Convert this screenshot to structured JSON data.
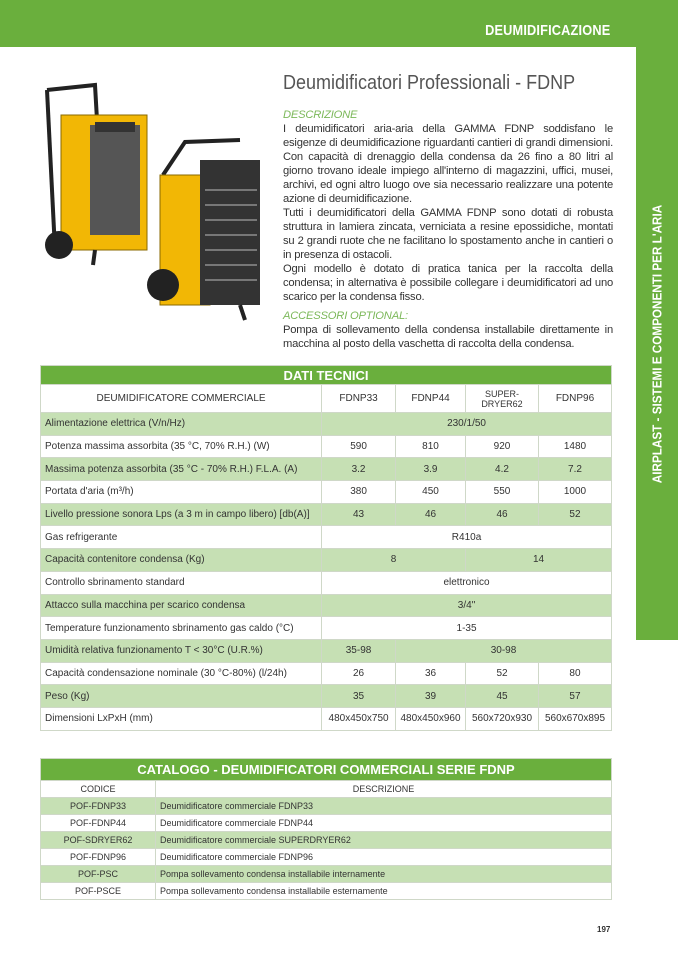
{
  "header": {
    "section": "DEUMIDIFICAZIONE",
    "side_label": "AIRPLAST - SISTEMI E COMPONENTI PER L'ARIA"
  },
  "product": {
    "title": "Deumidificatori Professionali - FDNP",
    "description_heading": "DESCRIZIONE",
    "description": "I deumidificatori aria-aria della GAMMA FDNP soddisfano le esigenze di deumidificazione riguardanti cantieri di grandi dimensioni. Con capacità di drenaggio della condensa da 26 fino a 80 litri al giorno trovano ideale impiego all'interno di magazzini, uffici, musei, archivi, ed ogni altro luogo ove sia necessario realizzare una potente azione di deumidificazione.\nTutti i deumidificatori della GAMMA FDNP sono dotati di robusta struttura in lamiera zincata, verniciata a resine epossidiche, montati su 2 grandi ruote che ne facilitano lo spostamento anche in cantieri o in presenza di ostacoli.\nOgni modello è dotato di pratica tanica per la raccolta della condensa; in alternativa è possibile collegare i deumidificatori ad uno scarico per la condensa fisso.",
    "accessories_heading": "ACCESSORI OPTIONAL:",
    "accessories": "Pompa di sollevamento della condensa installabile direttamente in macchina al posto della vaschetta di raccolta della condensa."
  },
  "tech": {
    "title": "DATI TECNICI",
    "header": [
      "DEUMIDIFICATORE COMMERCIALE",
      "FDNP33",
      "FDNP44",
      "SUPER-DRYER62",
      "FDNP96"
    ],
    "rows": [
      {
        "label": "Alimentazione elettrica (V/n/Hz)",
        "all": "230/1/50"
      },
      {
        "label": "Potenza massima assorbita (35 °C, 70% R.H.) (W)",
        "v": [
          "590",
          "810",
          "920",
          "1480"
        ]
      },
      {
        "label": "Massima potenza assorbita (35 °C - 70% R.H.) F.L.A. (A)",
        "v": [
          "3.2",
          "3.9",
          "4.2",
          "7.2"
        ]
      },
      {
        "label": "Portata d'aria (m³/h)",
        "v": [
          "380",
          "450",
          "550",
          "1000"
        ]
      },
      {
        "label": "Livello pressione sonora Lps (a 3 m in campo libero) [db(A)]",
        "v": [
          "43",
          "46",
          "46",
          "52"
        ]
      },
      {
        "label": "Gas refrigerante",
        "all": "R410a"
      },
      {
        "label": "Capacità contenitore condensa (Kg)",
        "a": "8",
        "b": "14"
      },
      {
        "label": "Controllo sbrinamento standard",
        "all": "elettronico"
      },
      {
        "label": "Attacco sulla macchina per scarico condensa",
        "all": "3/4\""
      },
      {
        "label": "Temperature funzionamento sbrinamento gas caldo (°C)",
        "all": "1-35"
      },
      {
        "label": "Umidità relativa funzionamento T < 30°C (U.R.%)",
        "a": "35-98",
        "b": "30-98"
      },
      {
        "label": "Capacità condensazione nominale (30 °C-80%) (l/24h)",
        "v": [
          "26",
          "36",
          "52",
          "80"
        ]
      },
      {
        "label": "Peso (Kg)",
        "v": [
          "35",
          "39",
          "45",
          "57"
        ]
      },
      {
        "label": "Dimensioni LxPxH (mm)",
        "v": [
          "480x450x750",
          "480x450x960",
          "560x720x930",
          "560x670x895"
        ]
      }
    ]
  },
  "catalog": {
    "title": "CATALOGO - DEUMIDIFICATORI COMMERCIALI SERIE FDNP",
    "header": [
      "CODICE",
      "DESCRIZIONE"
    ],
    "rows": [
      [
        "POF-FDNP33",
        "Deumidificatore commerciale FDNP33"
      ],
      [
        "POF-FDNP44",
        "Deumidificatore commerciale FDNP44"
      ],
      [
        "POF-SDRYER62",
        "Deumidificatore commerciale SUPERDRYER62"
      ],
      [
        "POF-FDNP96",
        "Deumidificatore commerciale FDNP96"
      ],
      [
        "POF-PSC",
        "Pompa sollevamento condensa installabile internamente"
      ],
      [
        "POF-PSCE",
        "Pompa sollevamento condensa installabile esternamente"
      ]
    ]
  },
  "page_number": "197",
  "colors": {
    "green": "#6aaf3d",
    "row_green": "#c6e0b4",
    "unit_yellow": "#f2b705"
  }
}
